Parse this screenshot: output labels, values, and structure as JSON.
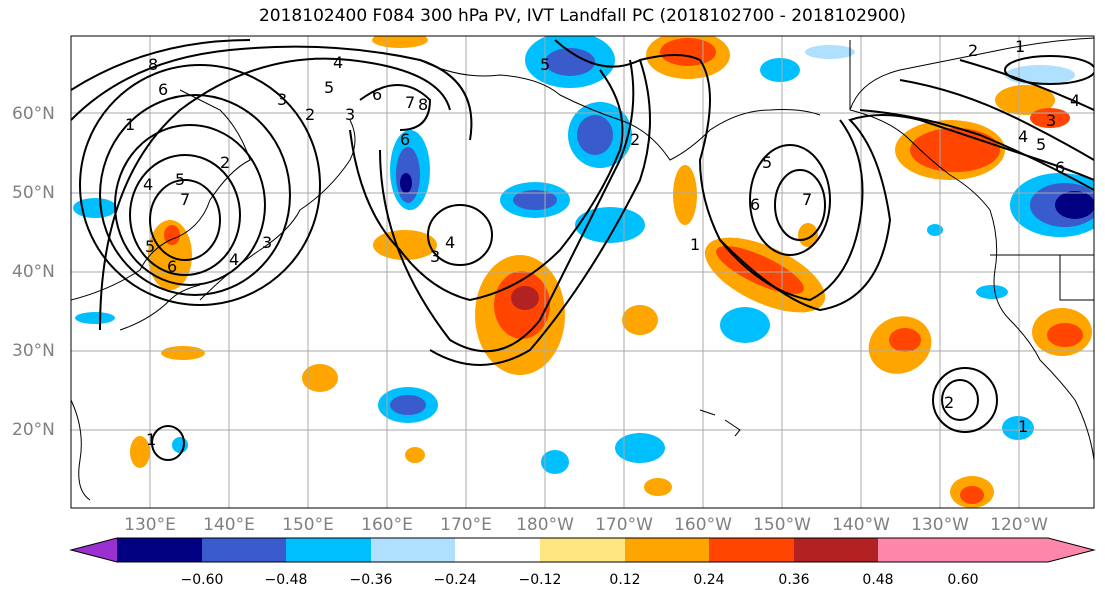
{
  "title": "2018102400 F084 300 hPa PV, IVT Landfall PC (2018102700 - 2018102900)",
  "lat_labels": [
    "60°N",
    "50°N",
    "40°N",
    "30°N",
    "20°N"
  ],
  "lon_labels": [
    "130°E",
    "140°E",
    "150°E",
    "160°E",
    "170°E",
    "180°W",
    "170°W",
    "160°W",
    "150°W",
    "140°W",
    "130°W",
    "120°W"
  ],
  "colorbar": {
    "tick_labels": [
      "−0.60",
      "−0.48",
      "−0.36",
      "−0.24",
      "−0.12",
      "0.12",
      "0.24",
      "0.36",
      "0.48",
      "0.60"
    ],
    "colors": [
      "#9b30d0",
      "#000080",
      "#3a5bcc",
      "#00bfff",
      "#b0e0ff",
      "#ffffff",
      "#ffe680",
      "#ffa500",
      "#ff4500",
      "#b22222",
      "#ff88aa"
    ]
  },
  "contour_labels": [
    "8",
    "6",
    "5",
    "4",
    "3",
    "2",
    "7",
    "6",
    "5",
    "4",
    "3",
    "2",
    "1",
    "4",
    "3",
    "5",
    "6",
    "7",
    "8",
    "6",
    "5",
    "4",
    "3",
    "2",
    "1",
    "7",
    "5",
    "6",
    "4",
    "3",
    "2",
    "1",
    "6",
    "4",
    "5",
    "1",
    "2",
    "1"
  ]
}
